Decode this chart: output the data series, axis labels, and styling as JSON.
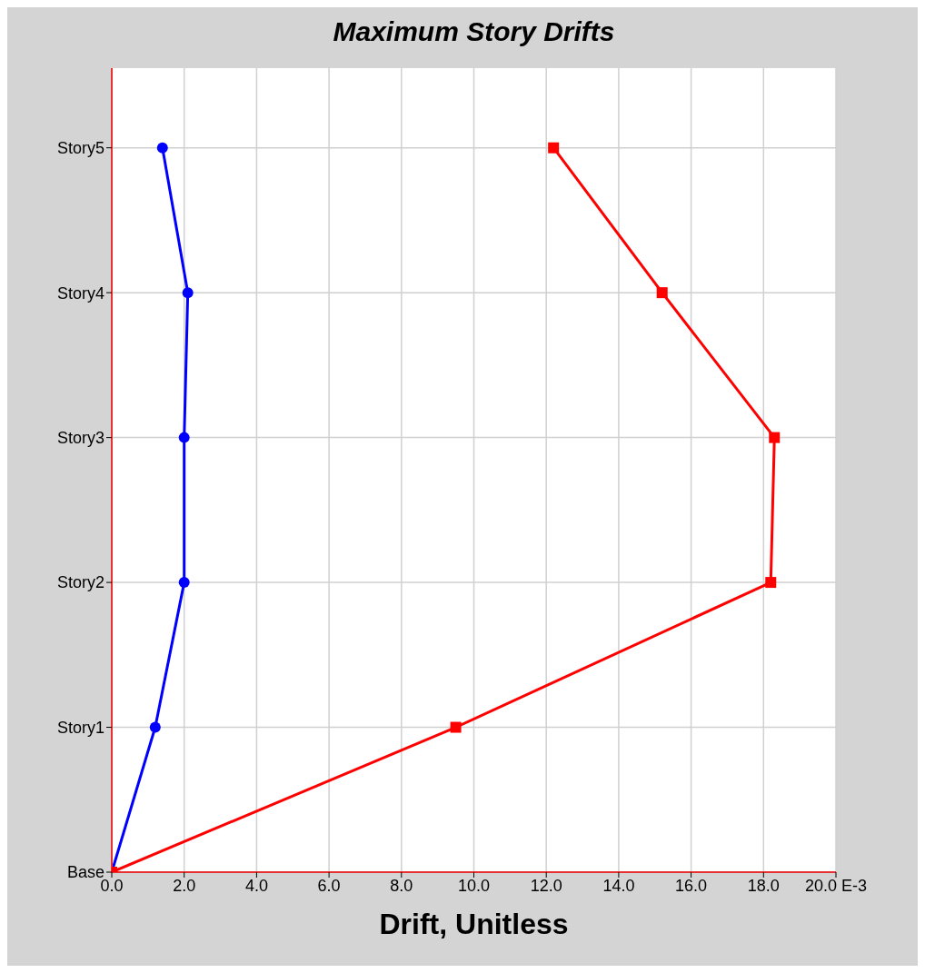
{
  "chart_data": {
    "type": "line",
    "orientation": "horizontal",
    "title": "Maximum Story Drifts",
    "xlabel": "Drift, Unitless",
    "categories": [
      "Story5",
      "Story4",
      "Story3",
      "Story2",
      "Story1",
      "Base"
    ],
    "series": [
      {
        "color": "#0000ff",
        "marker": "circle",
        "values": [
          1.4,
          2.1,
          2.0,
          2.0,
          1.2,
          0
        ]
      },
      {
        "color": "#ff0000",
        "marker": "square",
        "values": [
          12.2,
          15.2,
          18.3,
          18.2,
          9.5,
          0
        ]
      }
    ],
    "xlim": [
      0,
      20
    ],
    "xticks": [
      {
        "value": 0,
        "label": "0.0"
      },
      {
        "value": 2,
        "label": "2.0"
      },
      {
        "value": 4,
        "label": "4.0"
      },
      {
        "value": 6,
        "label": "6.0"
      },
      {
        "value": 8,
        "label": "8.0"
      },
      {
        "value": 10,
        "label": "10.0"
      },
      {
        "value": 12,
        "label": "12.0"
      },
      {
        "value": 14,
        "label": "14.0"
      },
      {
        "value": 16,
        "label": "16.0"
      },
      {
        "value": 18,
        "label": "18.0"
      },
      {
        "value": 20,
        "label": "20.0 E-3"
      }
    ],
    "grid": true
  }
}
